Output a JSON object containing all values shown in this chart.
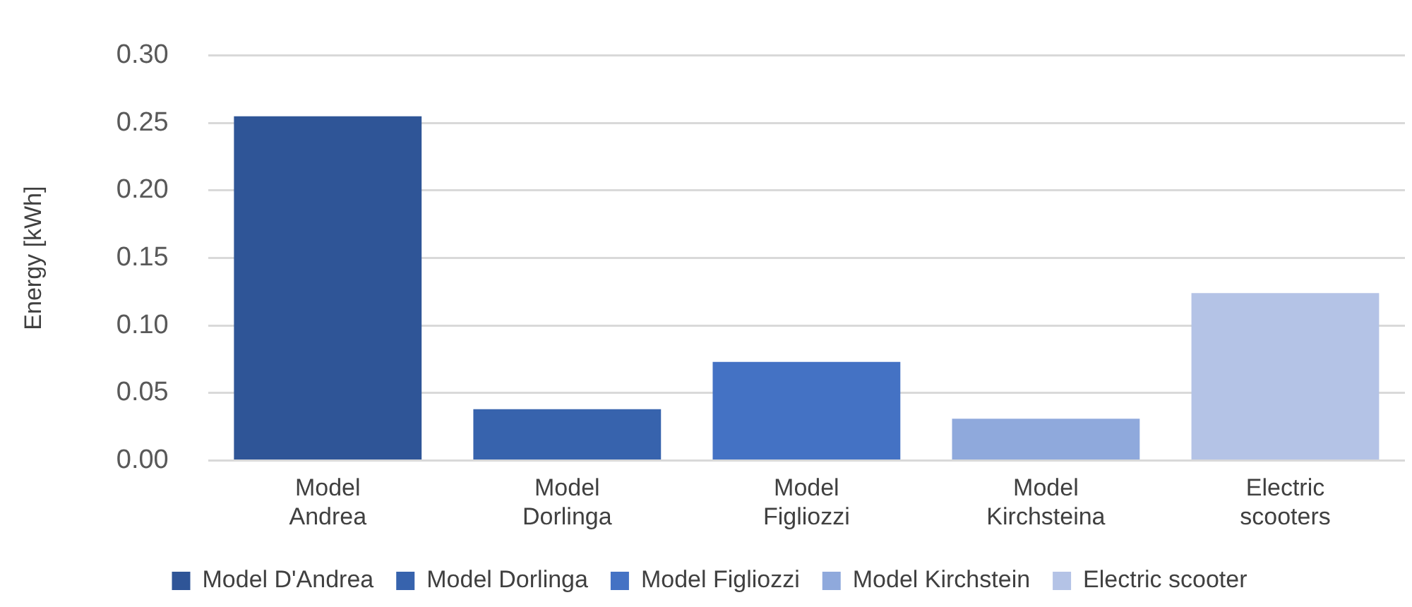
{
  "chart_data": {
    "type": "bar",
    "ylabel": "Energy [kWh]",
    "categories": [
      "Model Andrea",
      "Model Dorlinga",
      "Model Figliozzi",
      "Model Kirchsteina",
      "Electric scooters"
    ],
    "series": [
      {
        "name": "Model D'Andrea",
        "color": "#2f5597",
        "values": [
          0.255,
          null,
          null,
          null,
          null
        ]
      },
      {
        "name": "Model Dorlinga",
        "color": "#3763ad",
        "values": [
          null,
          0.038,
          null,
          null,
          null
        ]
      },
      {
        "name": "Model Figliozzi",
        "color": "#4472c4",
        "values": [
          null,
          null,
          0.073,
          null,
          null
        ]
      },
      {
        "name": "Model Kirchstein",
        "color": "#8fa9dc",
        "values": [
          null,
          null,
          null,
          0.031,
          null
        ]
      },
      {
        "name": "Electric scooter",
        "color": "#b4c3e6",
        "values": [
          null,
          null,
          null,
          null,
          0.124
        ]
      }
    ],
    "ylim": [
      0,
      0.3
    ],
    "yticks": [
      {
        "value": 0,
        "label": "0.00"
      },
      {
        "value": 0.05,
        "label": "0.05"
      },
      {
        "value": 0.1,
        "label": "0.10"
      },
      {
        "value": 0.15,
        "label": "0.15"
      },
      {
        "value": 0.2,
        "label": "0.20"
      },
      {
        "value": 0.25,
        "label": "0.25"
      },
      {
        "value": 0.3,
        "label": "0.30"
      }
    ],
    "grid": "y",
    "legend": "bottom"
  }
}
